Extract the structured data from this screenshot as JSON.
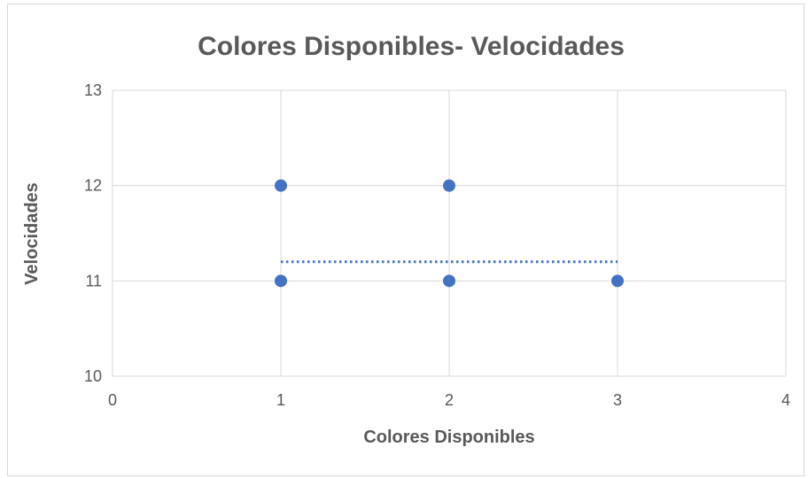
{
  "chart_data": {
    "type": "scatter",
    "title": "Colores Disponibles- Velocidades",
    "xlabel": "Colores Disponibles",
    "ylabel": "Velocidades",
    "xlim": [
      0,
      4
    ],
    "ylim": [
      10,
      13
    ],
    "x_ticks": [
      "0",
      "1",
      "2",
      "3",
      "4"
    ],
    "y_ticks": [
      "10",
      "11",
      "12",
      "13"
    ],
    "grid": true,
    "legend": "none",
    "series": [
      {
        "points": [
          {
            "x": 1,
            "y": 12
          },
          {
            "x": 1,
            "y": 11
          },
          {
            "x": 2,
            "y": 12
          },
          {
            "x": 2,
            "y": 11
          },
          {
            "x": 3,
            "y": 11
          }
        ]
      }
    ],
    "trendline": {
      "style": "dotted",
      "points": [
        {
          "x": 1,
          "y": 11.2
        },
        {
          "x": 3,
          "y": 11.2
        }
      ]
    },
    "colors": {
      "marker": "#4472C4",
      "trendline": "#4472C4",
      "grid": "#d9d9d9",
      "text": "#595959"
    }
  }
}
